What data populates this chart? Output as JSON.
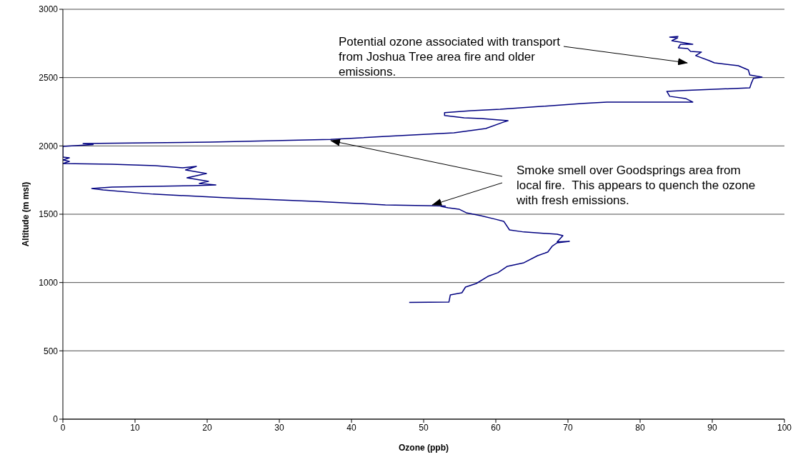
{
  "chart_data": {
    "type": "line",
    "xlabel": "Ozone (ppb)",
    "ylabel": "Altitude (m msl)",
    "xlim": [
      0,
      100
    ],
    "xticks": [
      0,
      10,
      20,
      30,
      40,
      50,
      60,
      70,
      80,
      90,
      100
    ],
    "ylim": [
      0,
      3000
    ],
    "yticks": [
      0,
      500,
      1000,
      1500,
      2000,
      2500,
      3000
    ],
    "grid": "y",
    "legend": false,
    "marker": "none",
    "line_style": "solid",
    "annotations": [
      "Potential ozone associated with transport from Joshua Tree area fire and older emissions.",
      {
        "text": "Smoke smell over Goodsprings area from local fire.  This appears to quench the ozone with fresh emissions.",
        "x": 51.2,
        "y": 1568
      }
    ],
    "series": [
      {
        "color": "#000080",
        "x": [
          48,
          53.5,
          53.7,
          55.3,
          55.8,
          57.3,
          58.9,
          60.3,
          61.6,
          63.9,
          65.8,
          67.2,
          67.8,
          68.5,
          70.2,
          68.5,
          69.3,
          68.5,
          63.9,
          61.9,
          61.1,
          59.9,
          57.9,
          55.9,
          54.9,
          53.4,
          52.4,
          53,
          44.7,
          40.9,
          34.9,
          22.7,
          12.5,
          5.6,
          4,
          6.8,
          18.1,
          21.2,
          18.9,
          20.2,
          17.2,
          19.9,
          17,
          18.5,
          16.6,
          12.8,
          6.8,
          0,
          0.9,
          0,
          0.9,
          0,
          0,
          4.2,
          2.8,
          20.4,
          37.1,
          44.7,
          54.2,
          58.6,
          61.1,
          61.7,
          58,
          55.6,
          52.9,
          52.9,
          56.6,
          60.6,
          72.2,
          75.4,
          87.3,
          86.3,
          84.1,
          83.7,
          86,
          95.2,
          95.4,
          95.7,
          96.9,
          95.2,
          95,
          93.6,
          90.3,
          89.6,
          87.7,
          88.5,
          87,
          86.6,
          85.3,
          85.6,
          87.3,
          84.4,
          85.2,
          84.1,
          85.3
        ],
        "values": [
          855,
          857,
          910,
          925,
          967,
          993,
          1045,
          1072,
          1119,
          1145,
          1197,
          1223,
          1265,
          1291,
          1302,
          1298,
          1343,
          1354,
          1370,
          1385,
          1448,
          1464,
          1490,
          1511,
          1537,
          1547,
          1557,
          1560,
          1568,
          1579,
          1594,
          1620,
          1647,
          1678,
          1688,
          1699,
          1709,
          1714,
          1725,
          1741,
          1767,
          1798,
          1824,
          1850,
          1840,
          1856,
          1866,
          1871,
          1887,
          1897,
          1913,
          1918,
          1997,
          2010,
          2018,
          2028,
          2047,
          2070,
          2096,
          2127,
          2175,
          2185,
          2200,
          2206,
          2222,
          2243,
          2258,
          2268,
          2311,
          2321,
          2321,
          2347,
          2363,
          2399,
          2405,
          2425,
          2457,
          2494,
          2504,
          2519,
          2556,
          2587,
          2608,
          2624,
          2661,
          2687,
          2692,
          2713,
          2718,
          2744,
          2744,
          2770,
          2791,
          2796,
          2802
        ]
      }
    ]
  }
}
